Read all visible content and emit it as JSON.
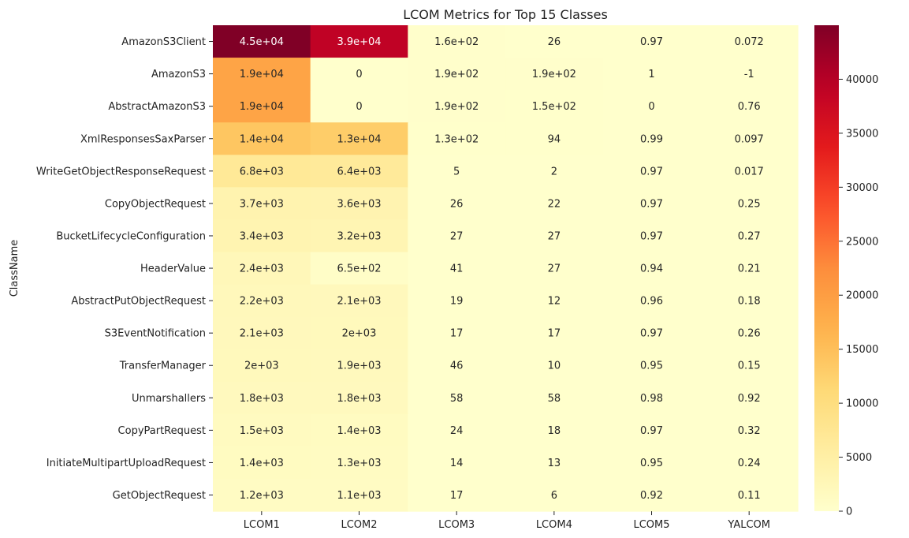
{
  "chart_data": {
    "type": "heatmap",
    "title": "LCOM Metrics for Top 15 Classes",
    "ylabel": "ClassName",
    "xlabel": "",
    "columns": [
      "LCOM1",
      "LCOM2",
      "LCOM3",
      "LCOM4",
      "LCOM5",
      "YALCOM"
    ],
    "rows": [
      "AmazonS3Client",
      "AmazonS3",
      "AbstractAmazonS3",
      "XmlResponsesSaxParser",
      "WriteGetObjectResponseRequest",
      "CopyObjectRequest",
      "BucketLifecycleConfiguration",
      "HeaderValue",
      "AbstractPutObjectRequest",
      "S3EventNotification",
      "TransferManager",
      "Unmarshallers",
      "CopyPartRequest",
      "InitiateMultipartUploadRequest",
      "GetObjectRequest"
    ],
    "values": [
      [
        45000,
        39000,
        160,
        26,
        0.97,
        0.072
      ],
      [
        19000,
        0,
        190,
        190,
        1,
        -1
      ],
      [
        19000,
        0,
        190,
        150,
        0,
        0.76
      ],
      [
        14000,
        13000,
        130,
        94,
        0.99,
        0.097
      ],
      [
        6800,
        6400,
        5,
        2,
        0.97,
        0.017
      ],
      [
        3700,
        3600,
        26,
        22,
        0.97,
        0.25
      ],
      [
        3400,
        3200,
        27,
        27,
        0.97,
        0.27
      ],
      [
        2400,
        650,
        41,
        27,
        0.94,
        0.21
      ],
      [
        2200,
        2100,
        19,
        12,
        0.96,
        0.18
      ],
      [
        2100,
        2000,
        17,
        17,
        0.97,
        0.26
      ],
      [
        2000,
        1900,
        46,
        10,
        0.95,
        0.15
      ],
      [
        1800,
        1800,
        58,
        58,
        0.98,
        0.92
      ],
      [
        1500,
        1400,
        24,
        18,
        0.97,
        0.32
      ],
      [
        1400,
        1300,
        14,
        13,
        0.95,
        0.24
      ],
      [
        1200,
        1100,
        17,
        6,
        0.92,
        0.11
      ]
    ],
    "annotations": [
      [
        "4.5e+04",
        "3.9e+04",
        "1.6e+02",
        "26",
        "0.97",
        "0.072"
      ],
      [
        "1.9e+04",
        "0",
        "1.9e+02",
        "1.9e+02",
        "1",
        "-1"
      ],
      [
        "1.9e+04",
        "0",
        "1.9e+02",
        "1.5e+02",
        "0",
        "0.76"
      ],
      [
        "1.4e+04",
        "1.3e+04",
        "1.3e+02",
        "94",
        "0.99",
        "0.097"
      ],
      [
        "6.8e+03",
        "6.4e+03",
        "5",
        "2",
        "0.97",
        "0.017"
      ],
      [
        "3.7e+03",
        "3.6e+03",
        "26",
        "22",
        "0.97",
        "0.25"
      ],
      [
        "3.4e+03",
        "3.2e+03",
        "27",
        "27",
        "0.97",
        "0.27"
      ],
      [
        "2.4e+03",
        "6.5e+02",
        "41",
        "27",
        "0.94",
        "0.21"
      ],
      [
        "2.2e+03",
        "2.1e+03",
        "19",
        "12",
        "0.96",
        "0.18"
      ],
      [
        "2.1e+03",
        "2e+03",
        "17",
        "17",
        "0.97",
        "0.26"
      ],
      [
        "2e+03",
        "1.9e+03",
        "46",
        "10",
        "0.95",
        "0.15"
      ],
      [
        "1.8e+03",
        "1.8e+03",
        "58",
        "58",
        "0.98",
        "0.92"
      ],
      [
        "1.5e+03",
        "1.4e+03",
        "24",
        "18",
        "0.97",
        "0.32"
      ],
      [
        "1.4e+03",
        "1.3e+03",
        "14",
        "13",
        "0.95",
        "0.24"
      ],
      [
        "1.2e+03",
        "1.1e+03",
        "17",
        "6",
        "0.92",
        "0.11"
      ]
    ],
    "colormap": "YlOrRd",
    "colorbar": {
      "min": -1,
      "max": 45000,
      "ticks": [
        0,
        5000,
        10000,
        15000,
        20000,
        25000,
        30000,
        35000,
        40000
      ],
      "tick_labels": [
        "0",
        "5000",
        "10000",
        "15000",
        "20000",
        "25000",
        "30000",
        "35000",
        "40000"
      ]
    },
    "grid": false,
    "legend": "colorbar-right"
  }
}
